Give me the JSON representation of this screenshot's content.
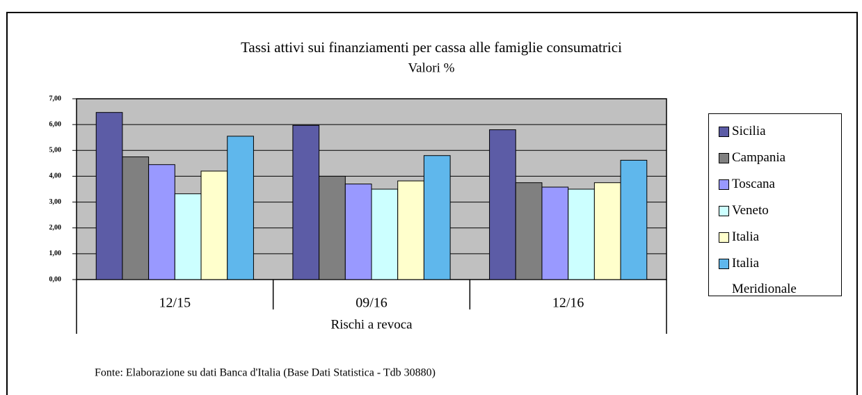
{
  "chart_data": {
    "type": "bar",
    "title": "Tassi attivi sui finanziamenti per cassa alle famiglie consumatrici",
    "subtitle": "Valori %",
    "x_label": "Rischi a revoca",
    "source": "Fonte: Elaborazione su dati Banca d'Italia (Base Dati Statistica - Tdb 30880)",
    "categories": [
      "12/15",
      "09/16",
      "12/16"
    ],
    "series": [
      {
        "name": "Sicilia",
        "color": "#5c5ca6",
        "values": [
          6.47,
          5.97,
          5.8
        ]
      },
      {
        "name": "Campania",
        "color": "#808080",
        "values": [
          4.75,
          4.0,
          3.75
        ]
      },
      {
        "name": "Toscana",
        "color": "#9999ff",
        "values": [
          4.45,
          3.7,
          3.58
        ]
      },
      {
        "name": "Veneto",
        "color": "#ccffff",
        "values": [
          3.32,
          3.5,
          3.5
        ]
      },
      {
        "name": "Italia",
        "color": "#ffffcc",
        "values": [
          4.2,
          3.82,
          3.75
        ]
      },
      {
        "name": "Italia Meridionale",
        "color": "#5fb7ec",
        "values": [
          5.55,
          4.8,
          4.62
        ]
      }
    ],
    "ylim": [
      0,
      7
    ],
    "yticks": [
      {
        "value": 0,
        "label": "0,00"
      },
      {
        "value": 1,
        "label": "1,00"
      },
      {
        "value": 2,
        "label": "2,00"
      },
      {
        "value": 3,
        "label": "3,00"
      },
      {
        "value": 4,
        "label": "4,00"
      },
      {
        "value": 5,
        "label": "5,00"
      },
      {
        "value": 6,
        "label": "6,00"
      },
      {
        "value": 7,
        "label": "7,00"
      }
    ],
    "grid": true
  }
}
